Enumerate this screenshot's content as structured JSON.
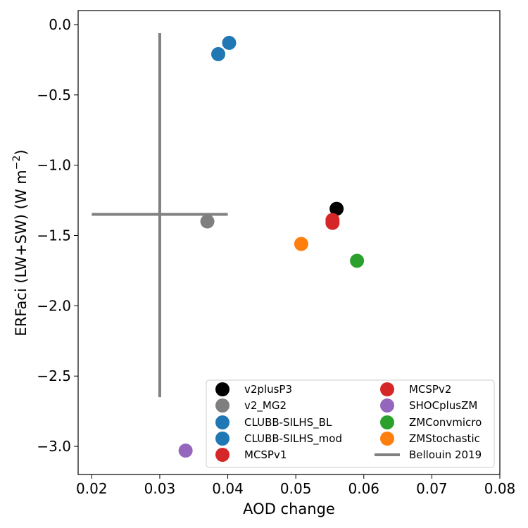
{
  "chart_data": {
    "type": "scatter",
    "xlabel": "AOD change",
    "ylabel_main": "ERFaci (LW+SW) (W m",
    "ylabel_sup": "−2",
    "ylabel_close": ")",
    "xlim": [
      0.018,
      0.08
    ],
    "ylim": [
      -3.2,
      0.1
    ],
    "xticks": [
      0.02,
      0.03,
      0.04,
      0.05,
      0.06,
      0.07,
      0.08
    ],
    "xtick_labels": [
      "0.02",
      "0.03",
      "0.04",
      "0.05",
      "0.06",
      "0.07",
      "0.08"
    ],
    "yticks": [
      0.0,
      -0.5,
      -1.0,
      -1.5,
      -2.0,
      -2.5,
      -3.0
    ],
    "ytick_labels": [
      "0.0",
      "−0.5",
      "−1.0",
      "−1.5",
      "−2.0",
      "−2.5",
      "−3.0"
    ],
    "grid": false,
    "legend_position": "bottom-right",
    "series": [
      {
        "name": "v2plusP3",
        "color": "#000000",
        "x": 0.056,
        "y": -1.31
      },
      {
        "name": "v2_MG2",
        "color": "#7f7f7f",
        "x": 0.037,
        "y": -1.4
      },
      {
        "name": "CLUBB-SILHS_BL",
        "color": "#1f77b4",
        "x": 0.0386,
        "y": -0.21
      },
      {
        "name": "CLUBB-SILHS_mod",
        "color": "#1f77b4",
        "x": 0.0402,
        "y": -0.13
      },
      {
        "name": "MCSPv1",
        "color": "#d62728",
        "x": 0.0554,
        "y": -1.41
      },
      {
        "name": "MCSPv2",
        "color": "#d62728",
        "x": 0.0554,
        "y": -1.39
      },
      {
        "name": "SHOCplusZM",
        "color": "#9467bd",
        "x": 0.0338,
        "y": -3.03
      },
      {
        "name": "ZMConvmicro",
        "color": "#2ca02c",
        "x": 0.059,
        "y": -1.68
      },
      {
        "name": "ZMStochastic",
        "color": "#ff7f0e",
        "x": 0.0508,
        "y": -1.56
      }
    ],
    "reference": {
      "name": "Bellouin 2019",
      "color": "#808080",
      "center_x": 0.03,
      "center_y": -1.35,
      "x_range": [
        0.02,
        0.04
      ],
      "y_range": [
        -2.65,
        -0.06
      ]
    }
  }
}
